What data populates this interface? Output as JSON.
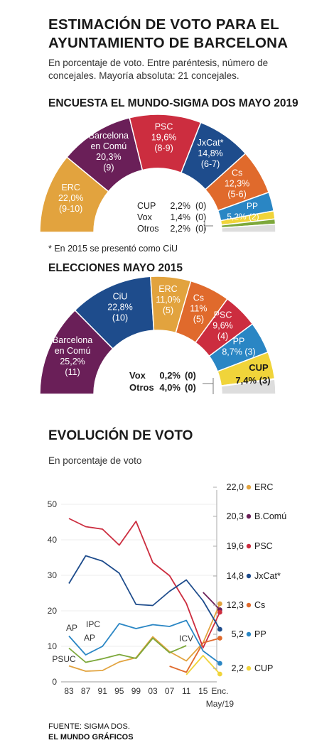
{
  "header": {
    "title": "ESTIMACIÓN DE VOTO PARA EL AYUNTAMIENTO DE BARCELONA",
    "subtitle": "En porcentaje de voto. Entre paréntesis, número de concejales. Mayoría absoluta: 21 concejales."
  },
  "colors": {
    "ERC": "#e2a33e",
    "BComu": "#6a1f58",
    "PSC": "#cc2d3f",
    "JxCat": "#1e4c8c",
    "Cs": "#e06a2c",
    "PP": "#2a86c4",
    "CUP": "#f0d43a",
    "Otros": "#dddddd",
    "Verde": "#7da83b"
  },
  "chart_data": [
    {
      "type": "pie",
      "variant": "half-donut",
      "title": "ENCUESTA EL MUNDO-SIGMA DOS MAYO 2019",
      "slices": [
        {
          "party": "ERC",
          "label": "ERC",
          "value": 22.0,
          "value_text": "22,0%",
          "seats": "(9-10)",
          "color": "#e2a33e"
        },
        {
          "party": "BComu",
          "label": "Barcelona en Comú",
          "value": 20.3,
          "value_text": "20,3%",
          "seats": "(9)",
          "color": "#6a1f58"
        },
        {
          "party": "PSC",
          "label": "PSC",
          "value": 19.6,
          "value_text": "19,6%",
          "seats": "(8-9)",
          "color": "#cc2d3f"
        },
        {
          "party": "JxCat",
          "label": "JxCat*",
          "value": 14.8,
          "value_text": "14,8%",
          "seats": "(6-7)",
          "color": "#1e4c8c"
        },
        {
          "party": "Cs",
          "label": "Cs",
          "value": 12.3,
          "value_text": "12,3%",
          "seats": "(5-6)",
          "color": "#e06a2c"
        },
        {
          "party": "PP",
          "label": "PP",
          "value": 5.2,
          "value_text": "5,2%",
          "seats": "(2)",
          "color": "#2a86c4"
        },
        {
          "party": "CUP",
          "label": "CUP",
          "value": 2.2,
          "value_text": "2,2%",
          "seats": "(0)",
          "color": "#f0d43a"
        },
        {
          "party": "Vox",
          "label": "Vox",
          "value": 1.4,
          "value_text": "1,4%",
          "seats": "(0)",
          "color": "#7da83b"
        },
        {
          "party": "Otros",
          "label": "Otros",
          "value": 2.2,
          "value_text": "2,2%",
          "seats": "(0)",
          "color": "#dddddd"
        }
      ],
      "note": "* En 2015 se presentó como CiU"
    },
    {
      "type": "pie",
      "variant": "half-donut",
      "title": "ELECCIONES MAYO 2015",
      "slices": [
        {
          "party": "BComu",
          "label": "Barcelona en Comú",
          "value": 25.2,
          "value_text": "25,2%",
          "seats": "(11)",
          "color": "#6a1f58"
        },
        {
          "party": "CiU",
          "label": "CiU",
          "value": 22.8,
          "value_text": "22,8%",
          "seats": "(10)",
          "color": "#1e4c8c"
        },
        {
          "party": "ERC",
          "label": "ERC",
          "value": 11.0,
          "value_text": "11,0%",
          "seats": "(5)",
          "color": "#e2a33e"
        },
        {
          "party": "Cs",
          "label": "Cs",
          "value": 11.0,
          "value_text": "11%",
          "seats": "(5)",
          "color": "#e06a2c"
        },
        {
          "party": "PSC",
          "label": "PSC",
          "value": 9.6,
          "value_text": "9,6%",
          "seats": "(4)",
          "color": "#cc2d3f"
        },
        {
          "party": "PP",
          "label": "PP",
          "value": 8.7,
          "value_text": "8,7%",
          "seats": "(3)",
          "color": "#2a86c4"
        },
        {
          "party": "CUP",
          "label": "CUP",
          "value": 7.4,
          "value_text": "7,4%",
          "seats": "(3)",
          "color": "#f0d43a"
        },
        {
          "party": "Vox",
          "label": "Vox",
          "value": 0.2,
          "value_text": "0,2%",
          "seats": "(0)",
          "color": "#7da83b"
        },
        {
          "party": "Otros",
          "label": "Otros",
          "value": 4.0,
          "value_text": "4,0%",
          "seats": "(0)",
          "color": "#dddddd"
        }
      ]
    },
    {
      "type": "line",
      "title": "EVOLUCIÓN DE VOTO",
      "subtitle": "En porcentaje de voto",
      "x": [
        "83",
        "87",
        "91",
        "95",
        "99",
        "03",
        "07",
        "11",
        "15",
        "Enc. May/19"
      ],
      "ylim": [
        0,
        50
      ],
      "yticks": [
        0,
        10,
        20,
        30,
        40,
        50
      ],
      "series": [
        {
          "name": "ERC",
          "color": "#e2a33e",
          "values": [
            4.5,
            3.0,
            3.2,
            5.6,
            6.8,
            12.7,
            8.5,
            5.9,
            11.0,
            22.0
          ]
        },
        {
          "name": "B.Comú",
          "color": "#6a1f58",
          "values": [
            null,
            null,
            null,
            null,
            null,
            null,
            null,
            null,
            25.2,
            20.3
          ]
        },
        {
          "name": "PSC",
          "color": "#cc2d3f",
          "values": [
            46.0,
            43.7,
            43.0,
            38.5,
            45.2,
            33.6,
            29.9,
            22.1,
            9.6,
            19.6
          ]
        },
        {
          "name": "JxCat*",
          "color": "#1e4c8c",
          "values": [
            27.7,
            35.5,
            34.0,
            30.6,
            21.8,
            21.5,
            25.5,
            28.7,
            22.8,
            14.8
          ]
        },
        {
          "name": "Cs",
          "color": "#e06a2c",
          "values": [
            null,
            null,
            null,
            null,
            null,
            null,
            4.4,
            2.7,
            11.0,
            12.3
          ]
        },
        {
          "name": "PP",
          "color": "#2a86c4",
          "values": [
            12.9,
            7.6,
            10.0,
            16.4,
            15.0,
            16.1,
            15.6,
            17.3,
            8.7,
            5.2
          ]
        },
        {
          "name": "CUP",
          "color": "#f0d43a",
          "values": [
            null,
            null,
            null,
            null,
            null,
            null,
            null,
            2.0,
            7.4,
            2.2
          ]
        },
        {
          "name": "",
          "color": "#7da83b",
          "values": [
            9.5,
            5.5,
            6.5,
            7.7,
            6.6,
            12.3,
            8.2,
            10.2,
            null,
            null
          ]
        }
      ],
      "end_labels": [
        {
          "value_text": "22,0",
          "name": "ERC",
          "color": "#e2a33e"
        },
        {
          "value_text": "20,3",
          "name": "B.Comú",
          "color": "#6a1f58"
        },
        {
          "value_text": "19,6",
          "name": "PSC",
          "color": "#cc2d3f"
        },
        {
          "value_text": "14,8",
          "name": "JxCat*",
          "color": "#1e4c8c"
        },
        {
          "value_text": "12,3",
          "name": "Cs",
          "color": "#e06a2c"
        },
        {
          "value_text": "5,2",
          "name": "PP",
          "color": "#2a86c4"
        },
        {
          "value_text": "2,2",
          "name": "CUP",
          "color": "#f0d43a"
        }
      ],
      "annotations": [
        "AP",
        "IPC",
        "AP",
        "PSUC",
        "ICV"
      ]
    }
  ],
  "footer": {
    "source": "FUENTE: SIGMA DOS.",
    "credit": "EL MUNDO GRÁFICOS"
  }
}
